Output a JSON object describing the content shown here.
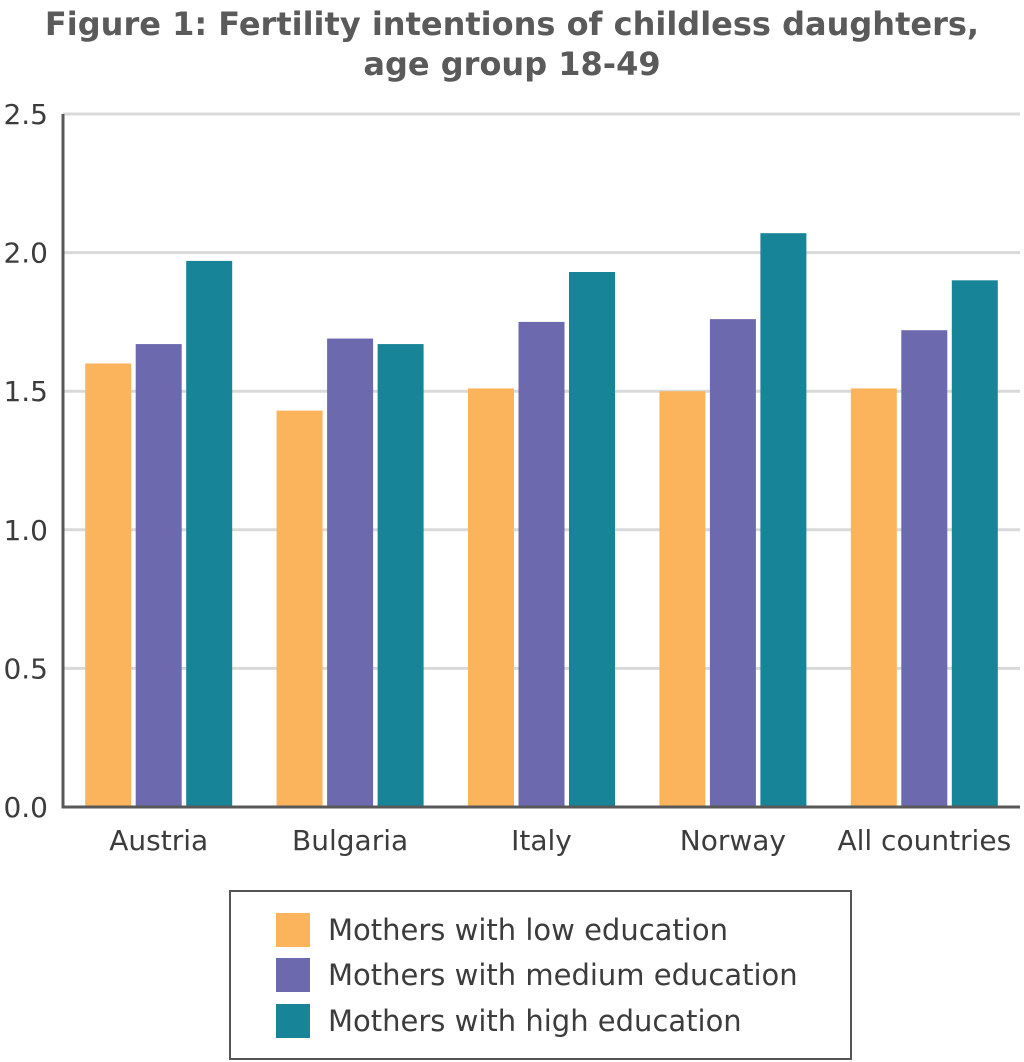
{
  "chart_data": {
    "type": "bar",
    "title_lines": [
      "Figure 1: Fertility intentions of childless daughters,",
      "age group 18-49"
    ],
    "categories": [
      "Austria",
      "Bulgaria",
      "Italy",
      "Norway",
      "All countries"
    ],
    "series": [
      {
        "name": "Mothers with low education",
        "color": "#FBB45C",
        "values": [
          1.6,
          1.43,
          1.51,
          1.5,
          1.51
        ]
      },
      {
        "name": "Mothers with medium education",
        "color": "#6C69AF",
        "values": [
          1.67,
          1.69,
          1.75,
          1.76,
          1.72
        ]
      },
      {
        "name": "Mothers with high education",
        "color": "#178597",
        "values": [
          1.97,
          1.67,
          1.93,
          2.07,
          1.9
        ]
      }
    ],
    "y_ticks": [
      "0.0",
      "0.5",
      "1.0",
      "1.5",
      "2.0",
      "2.5"
    ],
    "ylim": [
      0,
      2.5
    ],
    "grid": true,
    "legend_position": "bottom-center"
  }
}
